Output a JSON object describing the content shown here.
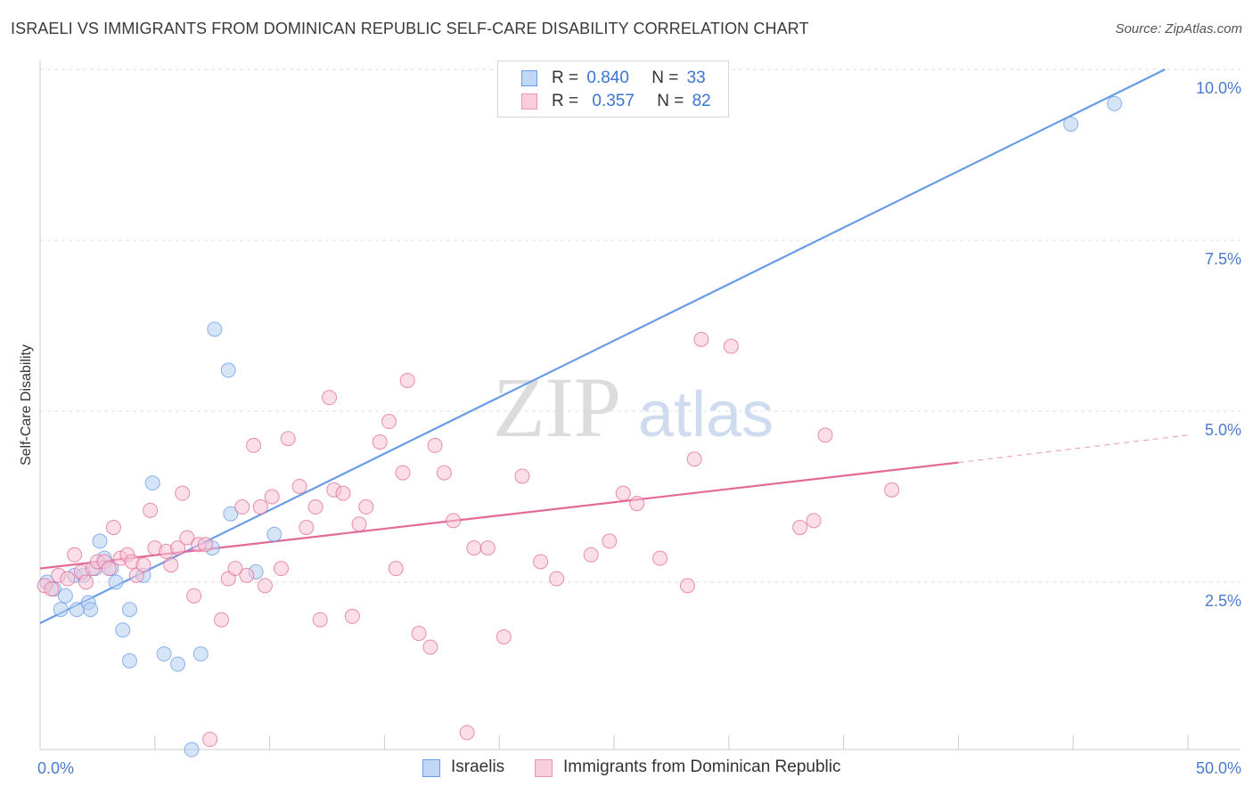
{
  "header": {
    "title": "ISRAELI VS IMMIGRANTS FROM DOMINICAN REPUBLIC SELF-CARE DISABILITY CORRELATION CHART",
    "source": "Source: ZipAtlas.com"
  },
  "watermark": {
    "zip": "ZIP",
    "atlas": "atlas"
  },
  "legend": {
    "r_label": "R =",
    "n_label": "N =",
    "rows": [
      {
        "r": "0.840",
        "n": "33",
        "color": "#a9c6f0"
      },
      {
        "r": "0.357",
        "n": "82",
        "color": "#f5b8cc"
      }
    ]
  },
  "bottom_legend": [
    {
      "label": "Israelis",
      "color": "#a9c6f0"
    },
    {
      "label": "Immigrants from Dominican Republic",
      "color": "#f5b8cc"
    }
  ],
  "chart_data": {
    "type": "scatter",
    "xlabel": "",
    "ylabel": "Self-Care Disability",
    "xlim": [
      0,
      50
    ],
    "ylim": [
      0,
      10.5
    ],
    "x_tick_labels": [
      {
        "value": 0,
        "label": "0.0%"
      },
      {
        "value": 50,
        "label": "50.0%"
      }
    ],
    "y_tick_labels": [
      {
        "value": 2.5,
        "label": "2.5%"
      },
      {
        "value": 5.0,
        "label": "5.0%"
      },
      {
        "value": 7.5,
        "label": "7.5%"
      },
      {
        "value": 10.0,
        "label": "10.0%"
      }
    ],
    "grid": true,
    "series": [
      {
        "name": "Israelis",
        "color": "#6a9be6",
        "fill": "#b5cef3",
        "trend": {
          "x": [
            0,
            49
          ],
          "y": [
            1.9,
            10.5
          ]
        },
        "points": [
          [
            0.3,
            2.5
          ],
          [
            0.6,
            2.4
          ],
          [
            0.9,
            2.1
          ],
          [
            1.1,
            2.3
          ],
          [
            1.5,
            2.6
          ],
          [
            1.6,
            2.1
          ],
          [
            1.9,
            2.6
          ],
          [
            2.1,
            2.2
          ],
          [
            2.2,
            2.1
          ],
          [
            2.4,
            2.7
          ],
          [
            2.6,
            3.1
          ],
          [
            2.8,
            2.85
          ],
          [
            3.1,
            2.7
          ],
          [
            3.3,
            2.5
          ],
          [
            3.6,
            1.8
          ],
          [
            3.9,
            2.1
          ],
          [
            3.9,
            1.35
          ],
          [
            4.5,
            2.6
          ],
          [
            4.9,
            3.95
          ],
          [
            5.4,
            1.45
          ],
          [
            6.0,
            1.3
          ],
          [
            6.6,
            0.05
          ],
          [
            7.0,
            1.45
          ],
          [
            7.5,
            3.0
          ],
          [
            7.6,
            6.2
          ],
          [
            8.2,
            5.6
          ],
          [
            8.3,
            3.5
          ],
          [
            9.4,
            2.65
          ],
          [
            10.2,
            3.2
          ],
          [
            44.9,
            9.2
          ],
          [
            46.8,
            9.5
          ]
        ]
      },
      {
        "name": "Immigrants from Dominican Republic",
        "color": "#e26a96",
        "fill": "#f7c3d5",
        "trend": {
          "x": [
            0,
            40
          ],
          "y": [
            2.7,
            4.25
          ]
        },
        "trend_dash": {
          "x": [
            40,
            50
          ],
          "y": [
            4.25,
            4.65
          ]
        },
        "points": [
          [
            0.2,
            2.45
          ],
          [
            0.5,
            2.4
          ],
          [
            0.8,
            2.6
          ],
          [
            1.2,
            2.55
          ],
          [
            1.5,
            2.9
          ],
          [
            1.8,
            2.65
          ],
          [
            2.0,
            2.5
          ],
          [
            2.3,
            2.7
          ],
          [
            2.5,
            2.8
          ],
          [
            2.8,
            2.8
          ],
          [
            3.0,
            2.7
          ],
          [
            3.2,
            3.3
          ],
          [
            3.5,
            2.85
          ],
          [
            3.8,
            2.9
          ],
          [
            4.0,
            2.8
          ],
          [
            4.2,
            2.6
          ],
          [
            4.5,
            2.75
          ],
          [
            4.8,
            3.55
          ],
          [
            5.0,
            3.0
          ],
          [
            5.5,
            2.95
          ],
          [
            5.7,
            2.75
          ],
          [
            6.0,
            3.0
          ],
          [
            6.2,
            3.8
          ],
          [
            6.4,
            3.15
          ],
          [
            6.7,
            2.3
          ],
          [
            6.9,
            3.05
          ],
          [
            7.2,
            3.05
          ],
          [
            7.4,
            0.2
          ],
          [
            7.9,
            1.95
          ],
          [
            8.2,
            2.55
          ],
          [
            8.5,
            2.7
          ],
          [
            8.8,
            3.6
          ],
          [
            9.0,
            2.6
          ],
          [
            9.3,
            4.5
          ],
          [
            9.6,
            3.6
          ],
          [
            9.8,
            2.45
          ],
          [
            10.1,
            3.75
          ],
          [
            10.5,
            2.7
          ],
          [
            10.8,
            4.6
          ],
          [
            11.3,
            3.9
          ],
          [
            11.6,
            3.3
          ],
          [
            12.0,
            3.6
          ],
          [
            12.2,
            1.95
          ],
          [
            12.6,
            5.2
          ],
          [
            12.8,
            3.85
          ],
          [
            13.2,
            3.8
          ],
          [
            13.6,
            2.0
          ],
          [
            13.9,
            3.35
          ],
          [
            14.2,
            3.6
          ],
          [
            14.8,
            4.55
          ],
          [
            15.2,
            4.85
          ],
          [
            15.5,
            2.7
          ],
          [
            15.8,
            4.1
          ],
          [
            16.0,
            5.45
          ],
          [
            16.5,
            1.75
          ],
          [
            17.0,
            1.55
          ],
          [
            17.2,
            4.5
          ],
          [
            17.6,
            4.1
          ],
          [
            18.0,
            3.4
          ],
          [
            18.6,
            0.3
          ],
          [
            18.9,
            3.0
          ],
          [
            19.5,
            3.0
          ],
          [
            20.2,
            1.7
          ],
          [
            21.0,
            4.05
          ],
          [
            21.8,
            2.8
          ],
          [
            22.5,
            2.55
          ],
          [
            24.0,
            2.9
          ],
          [
            24.8,
            3.1
          ],
          [
            25.4,
            3.8
          ],
          [
            26.0,
            3.65
          ],
          [
            27.0,
            2.85
          ],
          [
            28.2,
            2.45
          ],
          [
            28.5,
            4.3
          ],
          [
            28.8,
            6.05
          ],
          [
            30.1,
            5.95
          ],
          [
            33.1,
            3.3
          ],
          [
            33.7,
            3.4
          ],
          [
            34.2,
            4.65
          ],
          [
            37.1,
            3.85
          ]
        ]
      }
    ]
  }
}
